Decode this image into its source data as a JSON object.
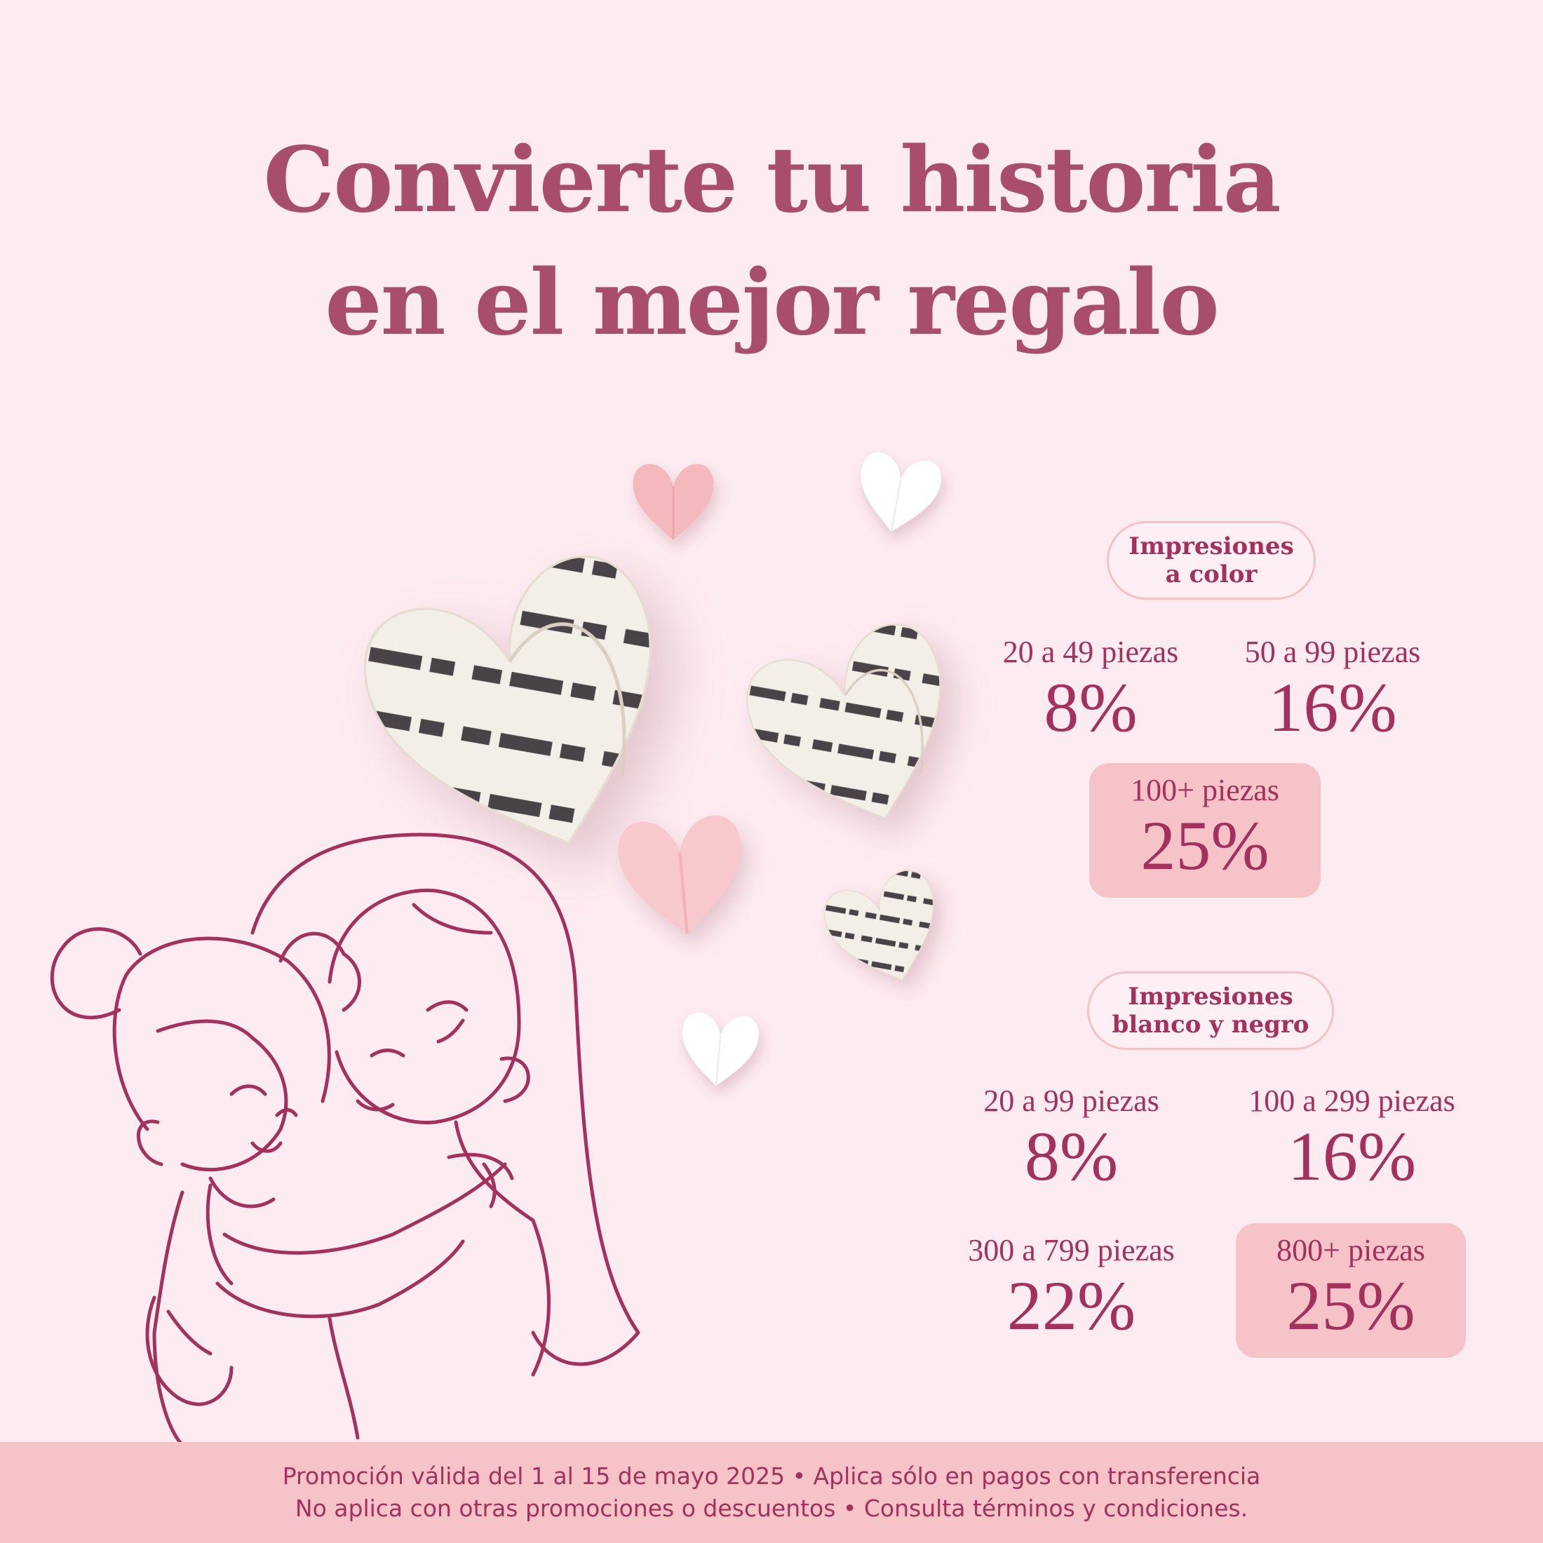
{
  "title": {
    "line1": "Convierte tu historia",
    "line2": "en el mejor regalo"
  },
  "colors": {
    "background": "#fcebf0",
    "accent": "#a3315b",
    "title": "#a84e6c",
    "highlight": "#f5c3c8"
  },
  "color_prints": {
    "heading_line1": "Impresiones",
    "heading_line2": "a color",
    "tiers": [
      {
        "label": "20 a 49 piezas",
        "discount": "8%"
      },
      {
        "label": "50 a 99 piezas",
        "discount": "16%"
      },
      {
        "label": "100+ piezas",
        "discount": "25%",
        "highlighted": true
      }
    ]
  },
  "bw_prints": {
    "heading_line1": "Impresiones",
    "heading_line2": "blanco y negro",
    "tiers": [
      {
        "label": "20 a 99 piezas",
        "discount": "8%"
      },
      {
        "label": "100 a 299 piezas",
        "discount": "16%"
      },
      {
        "label": "300 a 799 piezas",
        "discount": "22%"
      },
      {
        "label": "800+ piezas",
        "discount": "25%",
        "highlighted": true
      }
    ]
  },
  "illustration": {
    "subject": "mother-hugging-daughter-line-art",
    "decorations": "paper-hearts"
  },
  "footer": {
    "line1": "Promoción válida del 1 al 15 de mayo 2025 • Aplica sólo en pagos con transferencia",
    "line2": "No aplica con otras promociones o descuentos • Consulta términos y condiciones."
  }
}
